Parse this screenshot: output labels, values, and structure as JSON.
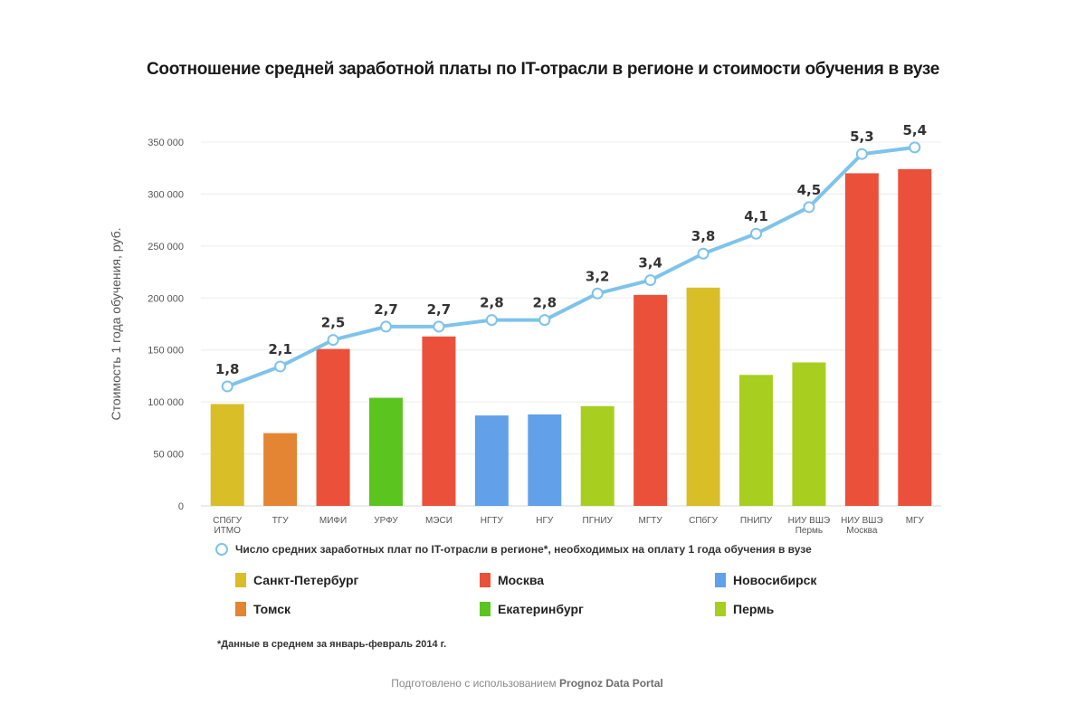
{
  "chart_data": {
    "type": "bar",
    "title": "Соотношение средней заработной платы по IT-отрасли в регионе и стоимости обучения в вузе",
    "xlabel": "",
    "ylabel": "Стоимость 1 года обучения, руб.",
    "ylim": [
      0,
      350000
    ],
    "yticks": [
      0,
      50000,
      100000,
      150000,
      200000,
      250000,
      300000,
      350000
    ],
    "ytick_labels": [
      "0",
      "50 000",
      "100 000",
      "150 000",
      "200 000",
      "250 000",
      "300 000",
      "350 000"
    ],
    "grid": true,
    "categories": [
      {
        "label": "СПбГУ",
        "label2": "ИТМО"
      },
      {
        "label": "ТГУ",
        "label2": ""
      },
      {
        "label": "МИФИ",
        "label2": ""
      },
      {
        "label": "УРФУ",
        "label2": ""
      },
      {
        "label": "МЭСИ",
        "label2": ""
      },
      {
        "label": "НГТУ",
        "label2": ""
      },
      {
        "label": "НГУ",
        "label2": ""
      },
      {
        "label": "ПГНИУ",
        "label2": ""
      },
      {
        "label": "МГТУ",
        "label2": ""
      },
      {
        "label": "СПбГУ",
        "label2": ""
      },
      {
        "label": "ПНИПУ",
        "label2": ""
      },
      {
        "label": "НИУ ВШЭ",
        "label2": "Пермь"
      },
      {
        "label": "НИУ ВШЭ",
        "label2": "Москва"
      },
      {
        "label": "МГУ",
        "label2": ""
      }
    ],
    "series": [
      {
        "name": "Стоимость 1 года обучения",
        "type": "bar",
        "values": [
          98000,
          70000,
          151000,
          104000,
          163000,
          87000,
          88000,
          96000,
          203000,
          210000,
          126000,
          138000,
          320000,
          324000
        ],
        "regions": [
          "spb",
          "tomsk",
          "moscow",
          "ekb",
          "moscow",
          "nsk",
          "nsk",
          "perm",
          "moscow",
          "spb",
          "perm",
          "perm",
          "moscow",
          "moscow"
        ]
      },
      {
        "name": "Число средних заработных плат по IT-отрасли в регионе*, необходимых на оплату 1 года обучения в вузе",
        "type": "line",
        "values": [
          1.8,
          2.1,
          2.5,
          2.7,
          2.7,
          2.8,
          2.8,
          3.2,
          3.4,
          3.8,
          4.1,
          4.5,
          5.3,
          5.4
        ],
        "value_labels": [
          "1,8",
          "2,1",
          "2,5",
          "2,7",
          "2,7",
          "2,8",
          "2,8",
          "3,2",
          "3,4",
          "3,8",
          "4,1",
          "4,5",
          "5,3",
          "5,4"
        ],
        "color": "#7ec3ea"
      }
    ],
    "region_legend": [
      {
        "key": "spb",
        "label": "Санкт-Петербург",
        "color": "#d9be28"
      },
      {
        "key": "moscow",
        "label": "Москва",
        "color": "#eb513a"
      },
      {
        "key": "nsk",
        "label": "Новосибирск",
        "color": "#62a0ea"
      },
      {
        "key": "tomsk",
        "label": "Томск",
        "color": "#e38532"
      },
      {
        "key": "ekb",
        "label": "Екатеринбург",
        "color": "#5cc41e"
      },
      {
        "key": "perm",
        "label": "Пермь",
        "color": "#a8ce20"
      }
    ],
    "legend_placement": "bottom"
  },
  "footnote": "*Данные в среднем за январь-февраль 2014 г.",
  "credit": {
    "prefix": "Подготовлено с использованием",
    "brand": "Prognoz Data Portal"
  }
}
